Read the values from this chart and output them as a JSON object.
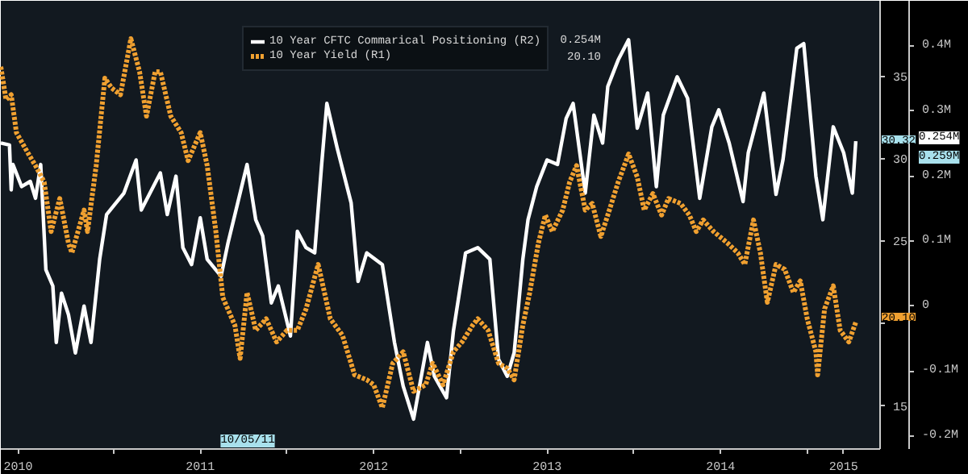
{
  "chart_data": {
    "type": "line",
    "xlim": [
      2010.35,
      2015.42
    ],
    "xticks": [
      {
        "value": 2010.45,
        "label": "2010"
      },
      {
        "value": 2011,
        "label": null
      },
      {
        "value": 2011.5,
        "label": "2011"
      },
      {
        "value": 2012,
        "label": null
      },
      {
        "value": 2012.5,
        "label": "2012"
      },
      {
        "value": 2013,
        "label": null
      },
      {
        "value": 2013.5,
        "label": "2013"
      },
      {
        "value": 2014,
        "label": null
      },
      {
        "value": 2014.5,
        "label": "2014"
      },
      {
        "value": 2015,
        "label": null
      },
      {
        "value": 2015.21,
        "label": "2015"
      }
    ],
    "ylim": [
      12.4,
      39.6
    ],
    "yticks": [
      15,
      {
        "value": 20,
        "label": null
      },
      25,
      30,
      35
    ],
    "y2lim": [
      -0.22,
      0.47
    ],
    "y2ticks": [
      {
        "value": -0.2,
        "label": "-0.2M"
      },
      {
        "value": -0.1,
        "label": "-0.1M"
      },
      0,
      {
        "value": 0.1,
        "label": "0.1M"
      },
      {
        "value": 0.2,
        "label": "0.2M"
      },
      {
        "value": 0.3,
        "label": "0.3M"
      },
      {
        "value": 0.4,
        "label": "0.4M"
      }
    ],
    "grid": false,
    "legend": "top",
    "series": [
      {
        "name": "10 Year CFTC Commarical Positioning (R2)",
        "color": "#ffffff",
        "axis": "y2",
        "line_style": "solid",
        "x": [
          2010.35,
          2010.4,
          2010.41,
          2010.42,
          2010.47,
          2010.52,
          2010.55,
          2010.58,
          2010.61,
          2010.65,
          2010.67,
          2010.7,
          2010.74,
          2010.78,
          2010.83,
          2010.87,
          2010.92,
          2010.96,
          2011.06,
          2011.13,
          2011.16,
          2011.27,
          2011.31,
          2011.36,
          2011.4,
          2011.45,
          2011.5,
          2011.54,
          2011.62,
          2011.66,
          2011.77,
          2011.82,
          2011.86,
          2011.91,
          2011.95,
          2012.02,
          2012.06,
          2012.11,
          2012.16,
          2012.2,
          2012.23,
          2012.29,
          2012.37,
          2012.41,
          2012.46,
          2012.55,
          2012.62,
          2012.67,
          2012.73,
          2012.81,
          2012.85,
          2012.92,
          2012.96,
          2013.03,
          2013.1,
          2013.17,
          2013.22,
          2013.27,
          2013.31,
          2013.36,
          2013.39,
          2013.44,
          2013.5,
          2013.56,
          2013.61,
          2013.65,
          2013.72,
          2013.77,
          2013.82,
          2013.85,
          2013.91,
          2013.97,
          2014.02,
          2014.08,
          2014.13,
          2014.17,
          2014.25,
          2014.31,
          2014.38,
          2014.45,
          2014.49,
          2014.55,
          2014.63,
          2014.66,
          2014.75,
          2014.82,
          2014.86,
          2014.94,
          2014.98,
          2015.05,
          2015.09,
          2015.15,
          2015.21,
          2015.26,
          2015.28
        ],
        "values": [
          0.251,
          0.248,
          0.179,
          0.218,
          0.184,
          0.192,
          0.166,
          0.218,
          0.056,
          0.031,
          -0.056,
          0.02,
          -0.013,
          -0.072,
          0,
          -0.056,
          0.072,
          0.141,
          0.174,
          0.225,
          0.148,
          0.205,
          0.141,
          0.2,
          0.09,
          0.064,
          0.136,
          0.072,
          0.046,
          0.097,
          0.218,
          0.133,
          0.108,
          0.005,
          0.031,
          -0.046,
          0.115,
          0.09,
          0.082,
          0.218,
          0.312,
          0.243,
          0.159,
          0.038,
          0.082,
          0.064,
          -0.056,
          -0.123,
          -0.174,
          -0.056,
          -0.108,
          -0.141,
          -0.038,
          0.082,
          0.09,
          0.072,
          -0.082,
          -0.108,
          -0.072,
          0.072,
          0.133,
          0.184,
          0.225,
          0.218,
          0.289,
          0.312,
          0.174,
          0.294,
          0.251,
          0.338,
          0.379,
          0.41,
          0.274,
          0.328,
          0.184,
          0.294,
          0.353,
          0.32,
          0.166,
          0.276,
          0.302,
          0.251,
          0.161,
          0.236,
          0.328,
          0.172,
          0.225,
          0.397,
          0.404,
          0.2,
          0.133,
          0.276,
          0.236,
          0.174,
          0.254
        ]
      },
      {
        "name": "10 Year Yield (R1)",
        "color": "#f0a030",
        "line_style": "dotted",
        "x": [
          2010.35,
          2010.38,
          2010.41,
          2010.44,
          2010.51,
          2010.55,
          2010.6,
          2010.64,
          2010.69,
          2010.74,
          2010.76,
          2010.83,
          2010.85,
          2010.9,
          2010.95,
          2010.99,
          2011.04,
          2011.1,
          2011.15,
          2011.19,
          2011.24,
          2011.27,
          2011.33,
          2011.39,
          2011.43,
          2011.5,
          2011.54,
          2011.59,
          2011.63,
          2011.7,
          2011.73,
          2011.77,
          2011.82,
          2011.88,
          2011.94,
          2012.0,
          2012.06,
          2012.11,
          2012.18,
          2012.25,
          2012.32,
          2012.39,
          2012.46,
          2012.5,
          2012.55,
          2012.61,
          2012.67,
          2012.73,
          2012.8,
          2012.84,
          2012.9,
          2012.96,
          2013.01,
          2013.07,
          2013.1,
          2013.16,
          2013.22,
          2013.27,
          2013.31,
          2013.36,
          2013.4,
          2013.45,
          2013.49,
          2013.53,
          2013.59,
          2013.63,
          2013.67,
          2013.72,
          2013.76,
          2013.81,
          2013.85,
          2013.91,
          2013.97,
          2014.02,
          2014.06,
          2014.11,
          2014.16,
          2014.2,
          2014.27,
          2014.32,
          2014.36,
          2014.4,
          2014.46,
          2014.54,
          2014.6,
          2014.64,
          2014.69,
          2014.73,
          2014.77,
          2014.82,
          2014.87,
          2014.92,
          2014.96,
          2015.0,
          2015.05,
          2015.06,
          2015.1,
          2015.15,
          2015.19,
          2015.24,
          2015.28
        ],
        "values": [
          35.6,
          33.6,
          33.9,
          31.6,
          30.3,
          29.6,
          28.6,
          25.6,
          27.6,
          24.9,
          24.3,
          26.9,
          25.6,
          29.6,
          34.9,
          34.3,
          33.9,
          37.3,
          35.3,
          32.6,
          35.3,
          35.3,
          32.6,
          31.6,
          29.9,
          31.6,
          29.6,
          25.6,
          21.6,
          19.9,
          17.9,
          21.9,
          19.6,
          20.3,
          18.9,
          19.6,
          19.6,
          20.9,
          23.6,
          20.3,
          19.3,
          16.9,
          16.6,
          16.3,
          14.9,
          17.6,
          18.3,
          15.9,
          16.3,
          17.6,
          16.3,
          18.3,
          18.9,
          19.9,
          20.3,
          19.6,
          17.6,
          17.3,
          16.6,
          19.9,
          21.9,
          24.9,
          26.6,
          25.6,
          26.9,
          28.6,
          29.6,
          26.9,
          27.3,
          25.3,
          26.6,
          28.6,
          30.3,
          28.9,
          26.9,
          27.9,
          26.6,
          27.6,
          27.3,
          26.6,
          25.6,
          26.3,
          25.6,
          24.9,
          24.3,
          23.6,
          26.3,
          24.3,
          21.3,
          23.6,
          23.3,
          21.9,
          22.6,
          20.3,
          18.3,
          16.9,
          20.9,
          22.3,
          19.6,
          18.9,
          20.1
        ]
      }
    ],
    "annotations": [
      "0.254M",
      "20.10",
      "30.32",
      "20.10",
      "0.254M",
      "0.259M",
      "10/05/11"
    ]
  }
}
